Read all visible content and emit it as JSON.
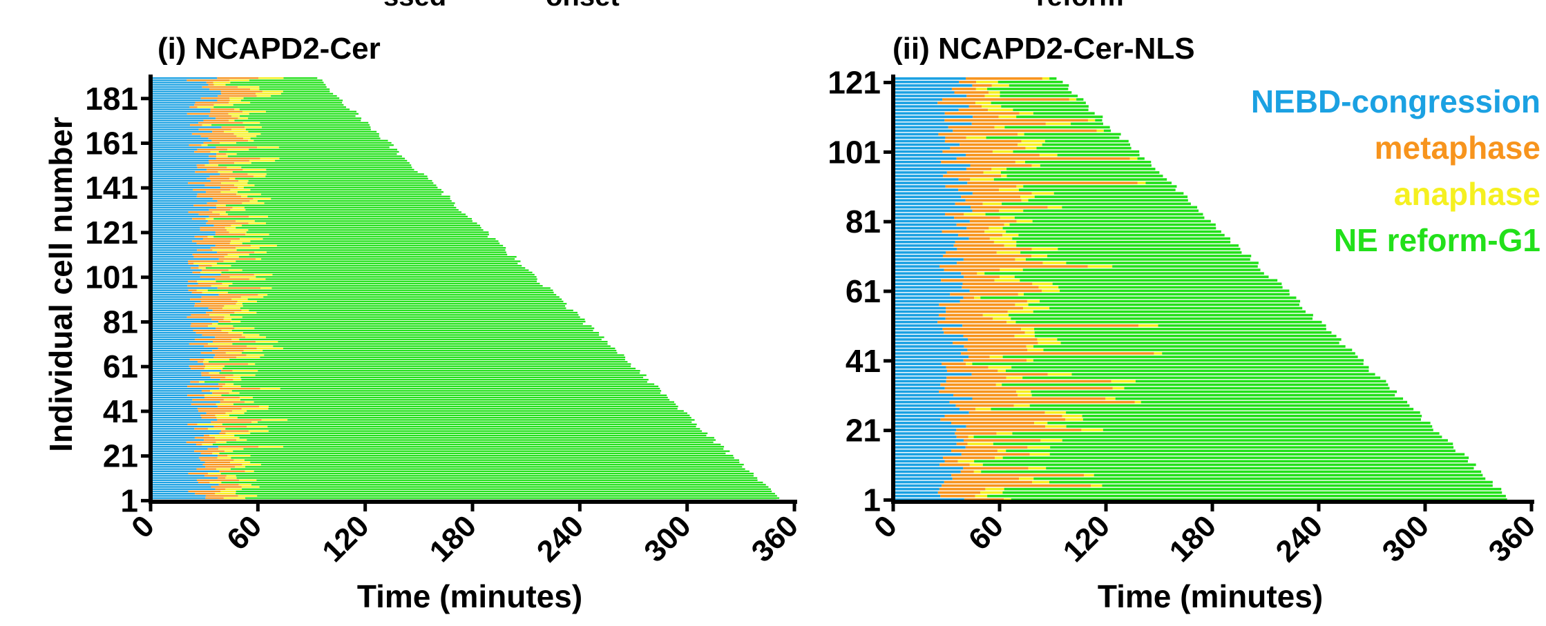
{
  "header_fragments": [
    "ssed",
    "onset",
    "reform"
  ],
  "legend": [
    {
      "label": "NEBD-congression",
      "color": "#1ba1e2"
    },
    {
      "label": "metaphase",
      "color": "#f7941d"
    },
    {
      "label": "anaphase",
      "color": "#f5f020"
    },
    {
      "label": "NE reform-G1",
      "color": "#22e01a"
    }
  ],
  "colors": {
    "congression": "#1ba1e2",
    "metaphase": "#f7941d",
    "anaphase": "#f5f020",
    "g1": "#22e01a",
    "axis": "#000000"
  },
  "chart_data": [
    {
      "type": "bar",
      "orientation": "horizontal-stacked",
      "title": "(i) NCAPD2-Cer",
      "xlabel": "Time (minutes)",
      "ylabel": "Individual cell number",
      "xlim": [
        0,
        360
      ],
      "xticks": [
        "0",
        "60",
        "120",
        "180",
        "240",
        "300",
        "360"
      ],
      "yticks": [
        "1",
        "21",
        "41",
        "61",
        "81",
        "101",
        "121",
        "141",
        "161",
        "181"
      ],
      "n_cells": 190,
      "series": [
        "NEBD-congression",
        "metaphase",
        "anaphase",
        "NE reform-G1"
      ],
      "summary": {
        "congression_end_min": [
          20,
          40
        ],
        "metaphase_end_min": [
          25,
          65
        ],
        "anaphase_end_min": [
          30,
          80
        ],
        "g1_end_min": [
          93,
          352
        ]
      }
    },
    {
      "type": "bar",
      "orientation": "horizontal-stacked",
      "title": "(ii) NCAPD2-Cer-NLS",
      "xlabel": "Time (minutes)",
      "ylabel": "",
      "xlim": [
        0,
        360
      ],
      "xticks": [
        "0",
        "60",
        "120",
        "180",
        "240",
        "300",
        "360"
      ],
      "yticks": [
        "1",
        "21",
        "41",
        "61",
        "81",
        "101",
        "121"
      ],
      "n_cells": 122,
      "series": [
        "NEBD-congression",
        "metaphase",
        "anaphase",
        "NE reform-G1"
      ],
      "summary": {
        "congression_end_min": [
          25,
          45
        ],
        "metaphase_end_min": [
          30,
          110
        ],
        "anaphase_end_min": [
          35,
          130
        ],
        "g1_end_min": [
          93,
          348
        ]
      }
    }
  ]
}
